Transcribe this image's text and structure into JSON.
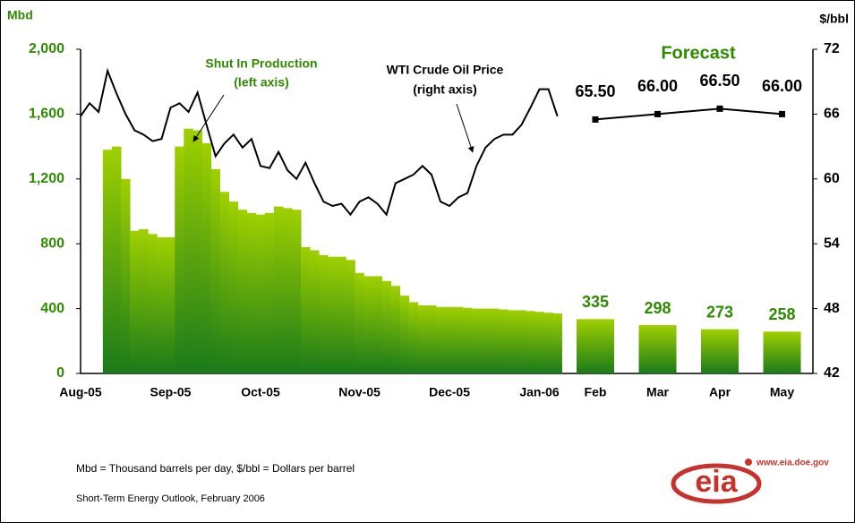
{
  "chart_data": [
    {
      "type": "bar",
      "left_axis_label": "Mbd",
      "right_axis_label": "$/bbl",
      "annotations": [
        [
          "Shut In Production",
          "(left axis)"
        ],
        [
          "WTI Crude Oil Price",
          "(right axis)"
        ]
      ],
      "categories": [
        "Aug-05",
        null,
        null,
        null,
        null,
        null,
        null,
        null,
        null,
        null,
        "Sep-05",
        null,
        null,
        null,
        null,
        null,
        null,
        null,
        null,
        null,
        "Oct-05",
        null,
        null,
        null,
        null,
        null,
        null,
        null,
        null,
        null,
        null,
        "Nov-05",
        null,
        null,
        null,
        null,
        null,
        null,
        null,
        null,
        null,
        "Dec-05",
        null,
        null,
        null,
        null,
        null,
        null,
        null,
        null,
        null,
        "Jan-06",
        null,
        null
      ],
      "ylim": [
        0,
        2000
      ],
      "yticks": [
        0,
        400,
        800,
        {
          "value": 1200,
          "label": "1,200"
        },
        {
          "value": 1600,
          "label": "1,600"
        },
        {
          "value": 2000,
          "label": "2,000"
        }
      ],
      "y2lim": [
        42,
        72
      ],
      "y2ticks": [
        42,
        48,
        54,
        60,
        66,
        72
      ],
      "series": [
        {
          "name": "Shut In Production",
          "color": "#9fd000",
          "values": [
            null,
            null,
            null,
            1380,
            1400,
            1200,
            880,
            890,
            860,
            840,
            840,
            1400,
            1510,
            1500,
            1420,
            1260,
            1120,
            1060,
            1010,
            990,
            980,
            990,
            1030,
            1020,
            1010,
            780,
            760,
            730,
            720,
            720,
            700,
            620,
            600,
            600,
            570,
            540,
            480,
            440,
            420,
            420,
            410,
            410,
            410,
            405,
            400,
            400,
            400,
            395,
            390,
            390,
            385,
            380,
            375,
            370
          ]
        },
        {
          "name": "WTI Crude Oil Price",
          "color": "#000000",
          "axis": "y2",
          "values": [
            65.8,
            67.0,
            66.2,
            70.0,
            67.9,
            66.0,
            64.5,
            64.1,
            63.5,
            63.7,
            66.6,
            67.0,
            66.2,
            68.0,
            65.0,
            62.1,
            63.3,
            64.1,
            62.9,
            63.7,
            61.2,
            61.0,
            62.5,
            60.8,
            60.0,
            61.5,
            59.6,
            57.9,
            57.5,
            57.7,
            56.7,
            57.9,
            58.3,
            57.7,
            56.7,
            59.6,
            60.0,
            60.4,
            61.2,
            60.4,
            57.9,
            57.5,
            58.3,
            58.7,
            61.2,
            62.9,
            63.7,
            64.1,
            64.1,
            65.0,
            66.6,
            68.3,
            68.3,
            65.8
          ]
        }
      ]
    },
    {
      "type": "bar",
      "title": "Forecast",
      "categories": [
        "Feb",
        "Mar",
        "Apr",
        "May"
      ],
      "series": [
        {
          "name": "Shut In Production",
          "color": "#9fd000",
          "values": [
            335,
            298,
            273,
            258
          ]
        },
        {
          "name": "WTI Crude Oil Price",
          "color": "#000000",
          "axis": "y2",
          "values": [
            65.5,
            66.0,
            66.5,
            66.0
          ],
          "value_labels": [
            "65.50",
            "66.00",
            "66.50",
            "66.00"
          ]
        }
      ]
    }
  ],
  "footnote": "Mbd = Thousand barrels per day, $/bbl = Dollars per barrel",
  "source": "Short-Term Energy Outlook,  February 2006",
  "logo": {
    "url": "www.eia.doe.gov",
    "text": "eia"
  }
}
